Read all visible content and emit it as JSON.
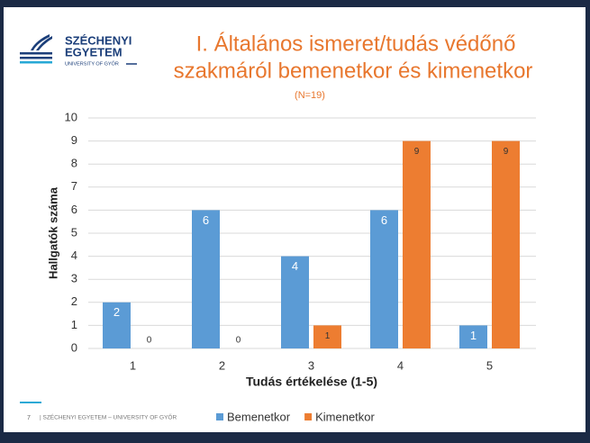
{
  "logo": {
    "line1": "SZÉCHENYI",
    "line2": "EGYETEM",
    "line3": "UNIVERSITY OF GYŐR"
  },
  "footer": {
    "page": "7",
    "text": "| SZÉCHENYI EGYETEM – UNIVERSITY OF GYŐR"
  },
  "chart_data": {
    "type": "bar",
    "title": [
      "I. Általános ismeret/tudás védőnő",
      "szakmáról bemenetkor és kimenetkor"
    ],
    "subtitle": "(N=19)",
    "x_label": "Tudás értékelése (1-5)",
    "y_label": "Hallgatók száma",
    "categories": [
      "1",
      "2",
      "3",
      "4",
      "5"
    ],
    "series": [
      {
        "name": "Bemenetkor",
        "color": "#5b9bd5",
        "values": [
          2,
          6,
          4,
          6,
          1
        ]
      },
      {
        "name": "Kimenetkor",
        "color": "#ed7d31",
        "values": [
          0,
          0,
          1,
          9,
          9
        ]
      }
    ],
    "ylim": [
      0,
      10
    ],
    "yticks": [
      0,
      1,
      2,
      3,
      4,
      5,
      6,
      7,
      8,
      9,
      10
    ],
    "grid": true,
    "legend": "bottom"
  }
}
